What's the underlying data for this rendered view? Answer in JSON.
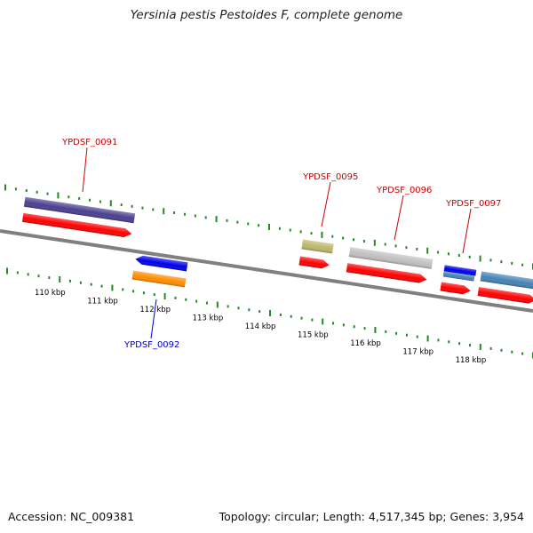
{
  "title": "Yersinia pestis Pestoides F, complete genome",
  "footer": {
    "accession": "Accession: NC_009381",
    "summary": "Topology: circular; Length: 4,517,345 bp; Genes: 3,954"
  },
  "colors": {
    "forward_gene": "#ff0000",
    "tick_green": "#228b22",
    "label_red": "#cc0000",
    "label_blue": "#0000cc"
  },
  "scale_labels": [
    "110 kbp",
    "111 kbp",
    "112 kbp",
    "113 kbp",
    "114 kbp",
    "115 kbp",
    "116 kbp",
    "117 kbp",
    "118 kbp"
  ],
  "gene_labels": [
    {
      "text": "YPDSF_0091",
      "color": "#cc0000"
    },
    {
      "text": "YPDSF_0092",
      "color": "#0000cc"
    },
    {
      "text": "YPDSF_0095",
      "color": "#cc0000"
    },
    {
      "text": "YPDSF_0096",
      "color": "#cc0000"
    },
    {
      "text": "YPDSF_0097",
      "color": "#cc0000"
    }
  ],
  "features": [
    {
      "name": "feature-purple",
      "color": "#4b3f8f"
    },
    {
      "name": "feature-red-1",
      "color": "#ff0000"
    },
    {
      "name": "feature-blue-reverse",
      "color": "#0000ee"
    },
    {
      "name": "feature-orange",
      "color": "#ff8c00"
    },
    {
      "name": "feature-khaki",
      "color": "#bdb76b"
    },
    {
      "name": "feature-red-2",
      "color": "#ff0000"
    },
    {
      "name": "feature-silver",
      "color": "#c0c0c0"
    },
    {
      "name": "feature-red-3",
      "color": "#ff0000"
    },
    {
      "name": "feature-blue-small",
      "color": "#0000ee"
    },
    {
      "name": "feature-steelblue-small",
      "color": "#4682b4"
    },
    {
      "name": "feature-red-4",
      "color": "#ff0000"
    },
    {
      "name": "feature-steelblue",
      "color": "#4682b4"
    },
    {
      "name": "feature-red-5",
      "color": "#ff0000"
    }
  ]
}
